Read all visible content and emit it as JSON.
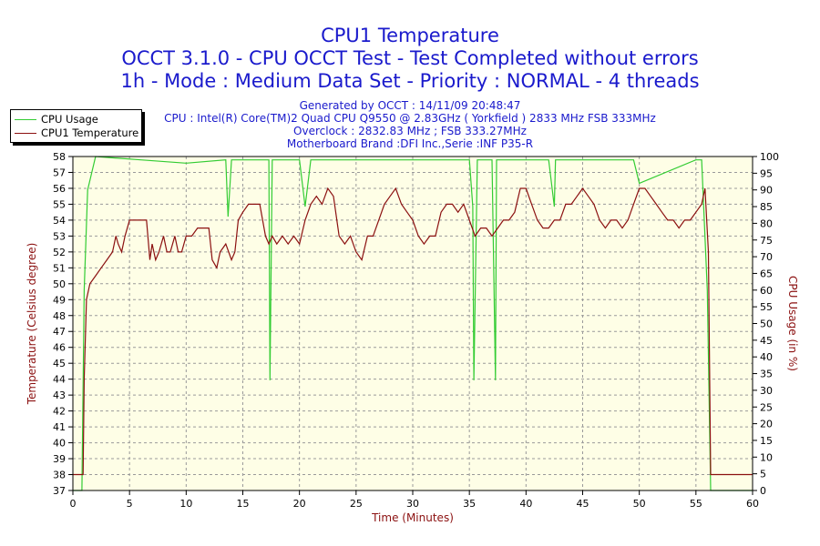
{
  "titles": {
    "line1": "CPU1 Temperature",
    "line2": "OCCT 3.1.0 - CPU OCCT Test - Test Completed without errors",
    "line3": "1h - Mode : Medium Data Set - Priority : NORMAL - 4 threads"
  },
  "info": {
    "line1": "Generated by OCCT : 14/11/09 20:48:47",
    "line2": "CPU : Intel(R) Core(TM)2 Quad CPU Q9550 @ 2.83GHz ( Yorkfield ) 2833 MHz FSB 333MHz",
    "line3": "Overclock : 2832.83 MHz ; FSB 333.27MHz",
    "line4": "Motherboard Brand :DFI Inc.,Serie :INF P35-R"
  },
  "legend": {
    "usage": "CPU Usage",
    "temp": "CPU1 Temperature"
  },
  "colors": {
    "temperature": "#8b1010",
    "usage": "#33cc33",
    "plot_bg": "#fefee6",
    "grid": "#9a9a9a",
    "title": "#1a1acc",
    "axis_label": "#8b1010"
  },
  "chart_data": {
    "type": "line",
    "xlabel": "Time (Minutes)",
    "ylabel_left": "Temperature (Celsius degree)",
    "ylabel_right": "CPU Usage (in %)",
    "xlim": [
      0,
      60
    ],
    "ylim_left": [
      37,
      58
    ],
    "ylim_right": [
      0,
      100
    ],
    "x_ticks": [
      0,
      5,
      10,
      15,
      20,
      25,
      30,
      35,
      40,
      45,
      50,
      55,
      60
    ],
    "y_ticks_left": [
      37,
      38,
      39,
      40,
      41,
      42,
      43,
      44,
      45,
      46,
      47,
      48,
      49,
      50,
      51,
      52,
      53,
      54,
      55,
      56,
      57,
      58
    ],
    "y_ticks_right": [
      0,
      5,
      10,
      15,
      20,
      25,
      30,
      35,
      40,
      45,
      50,
      55,
      60,
      65,
      70,
      75,
      80,
      85,
      90,
      95,
      100
    ],
    "grid": true,
    "series": [
      {
        "name": "CPU1 Temperature",
        "axis": "left",
        "x": [
          0,
          0.9,
          1.0,
          1.2,
          1.5,
          2.0,
          2.5,
          3.0,
          3.5,
          3.8,
          4.0,
          4.3,
          4.6,
          5.0,
          5.3,
          5.6,
          6.0,
          6.5,
          6.8,
          7.0,
          7.3,
          7.6,
          8.0,
          8.3,
          8.6,
          9.0,
          9.3,
          9.6,
          10.0,
          10.5,
          11.0,
          11.5,
          12.0,
          12.3,
          12.7,
          13.0,
          13.5,
          14.0,
          14.3,
          14.6,
          15.0,
          15.5,
          16.0,
          16.5,
          17.0,
          17.3,
          17.6,
          18.0,
          18.5,
          19.0,
          19.5,
          20.0,
          20.5,
          21.0,
          21.5,
          22.0,
          22.5,
          23.0,
          23.5,
          24.0,
          24.5,
          25.0,
          25.5,
          26.0,
          26.5,
          27.0,
          27.5,
          28.0,
          28.5,
          29.0,
          29.5,
          30.0,
          30.5,
          31.0,
          31.5,
          32.0,
          32.5,
          33.0,
          33.5,
          34.0,
          34.5,
          35.0,
          35.5,
          36.0,
          36.5,
          37.0,
          37.5,
          38.0,
          38.5,
          39.0,
          39.5,
          40.0,
          40.5,
          41.0,
          41.5,
          42.0,
          42.5,
          43.0,
          43.5,
          44.0,
          44.5,
          45.0,
          45.5,
          46.0,
          46.5,
          47.0,
          47.5,
          48.0,
          48.5,
          49.0,
          49.5,
          50.0,
          50.5,
          51.0,
          51.5,
          52.0,
          52.5,
          53.0,
          53.5,
          54.0,
          54.5,
          55.0,
          55.5,
          55.8,
          56.1,
          56.3,
          57.0,
          60.0
        ],
        "values": [
          38,
          38,
          44,
          49,
          50,
          50.5,
          51,
          51.5,
          52,
          53,
          52.5,
          52,
          53,
          54,
          54,
          54,
          54,
          54,
          51.5,
          52.5,
          51.5,
          52,
          53,
          52,
          52,
          53,
          52,
          52,
          53,
          53,
          53.5,
          53.5,
          53.5,
          51.5,
          51,
          52,
          52.5,
          51.5,
          52,
          54,
          54.5,
          55,
          55,
          55,
          53,
          52.5,
          53,
          52.5,
          53,
          52.5,
          53,
          52.5,
          54,
          55,
          55.5,
          55,
          56,
          55.5,
          53,
          52.5,
          53,
          52,
          51.5,
          53,
          53,
          54,
          55,
          55.5,
          56,
          55,
          54.5,
          54,
          53,
          52.5,
          53,
          53,
          54.5,
          55,
          55,
          54.5,
          55,
          54,
          53,
          53.5,
          53.5,
          53,
          53.5,
          54,
          54,
          54.5,
          56,
          56,
          55,
          54,
          53.5,
          53.5,
          54,
          54,
          55,
          55,
          55.5,
          56,
          55.5,
          55,
          54,
          53.5,
          54,
          54,
          53.5,
          54,
          55,
          56,
          56,
          55.5,
          55,
          54.5,
          54,
          54,
          53.5,
          54,
          54,
          54.5,
          55,
          56,
          52,
          38,
          38,
          38
        ]
      },
      {
        "name": "CPU Usage",
        "axis": "right",
        "x": [
          0,
          0.8,
          1.0,
          1.3,
          2.0,
          6.0,
          10.0,
          13.5,
          13.7,
          14.0,
          15.0,
          17.3,
          17.4,
          17.6,
          18.0,
          19.0,
          20.0,
          20.5,
          21.0,
          24.0,
          25.0,
          30.0,
          35.0,
          35.3,
          35.4,
          35.7,
          36.0,
          37.0,
          37.3,
          37.4,
          37.7,
          38.0,
          40.0,
          42.0,
          42.5,
          42.6,
          42.8,
          43.0,
          45.0,
          49.5,
          50.0,
          55.0,
          55.5,
          56.0,
          56.3,
          60.0
        ],
        "values": [
          0,
          0,
          60,
          90,
          100,
          99,
          98,
          99,
          82,
          99,
          99,
          99,
          33,
          99,
          99,
          99,
          99,
          85,
          99,
          99,
          99,
          99,
          99,
          85,
          33,
          99,
          99,
          99,
          33,
          99,
          99,
          99,
          99,
          99,
          85,
          99,
          99,
          99,
          99,
          99,
          92,
          99,
          99,
          60,
          0,
          0
        ]
      }
    ]
  }
}
